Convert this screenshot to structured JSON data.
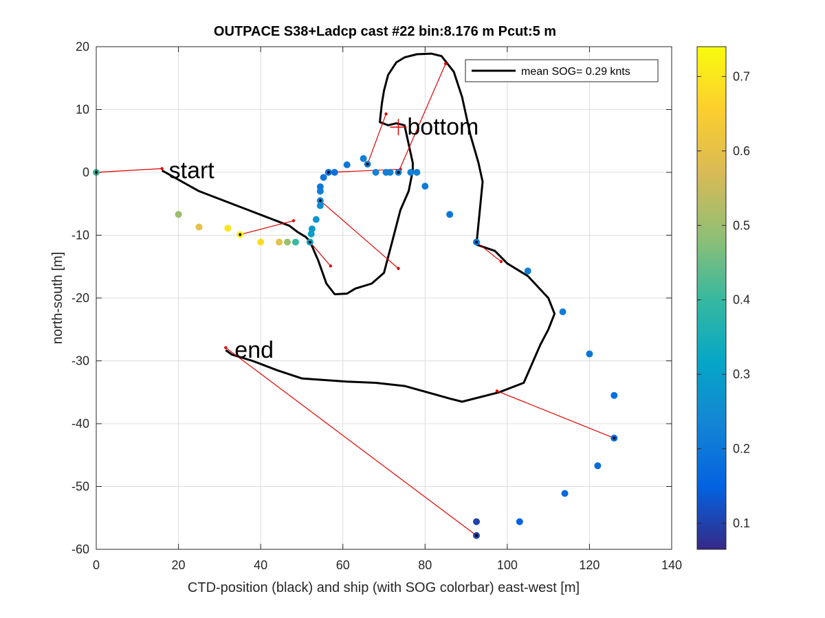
{
  "chart_data": {
    "type": "scatter",
    "title": "OUTPACE S38+Ladcp cast #22 bin:8.176 m  Pcut:5 m",
    "xlabel": "CTD-position (black) and ship (with SOG colorbar) east-west [m]",
    "ylabel": "north-south [m]",
    "xlim": [
      0,
      140
    ],
    "ylim": [
      -60,
      20
    ],
    "xticks": [
      0,
      20,
      40,
      60,
      80,
      100,
      120,
      140
    ],
    "yticks": [
      -60,
      -50,
      -40,
      -30,
      -20,
      -10,
      0,
      10,
      20
    ],
    "grid": true,
    "legend": {
      "location": "top-right",
      "entries": [
        "mean SOG=  0.29 knts"
      ]
    },
    "colorbar": {
      "label": "",
      "range": [
        0.065,
        0.74
      ],
      "ticks": [
        0.1,
        0.2,
        0.3,
        0.4,
        0.5,
        0.6,
        0.7
      ],
      "colormap": "parula",
      "colors": [
        "#352a87",
        "#0363e1",
        "#1485d4",
        "#06a7c6",
        "#38b99e",
        "#92bf73",
        "#d9ba56",
        "#fcce2e",
        "#f9fb0e"
      ]
    },
    "annotations": [
      {
        "text": "start",
        "x": 17,
        "y": 0.3
      },
      {
        "text": "bottom",
        "x": 75,
        "y": 7.2
      },
      {
        "text": "end",
        "x": 33,
        "y": -28.3
      }
    ],
    "ctd_track": {
      "name": "CTD position",
      "color": "#000000",
      "x": [
        16,
        25,
        37,
        47,
        49,
        51,
        52,
        54,
        56,
        58,
        61,
        63,
        67,
        70,
        72,
        74,
        76,
        77,
        77,
        76,
        75,
        73,
        71,
        69,
        69.5,
        70,
        71,
        73,
        75,
        78,
        81.5,
        84,
        87,
        89,
        91,
        93,
        94,
        92.5,
        97,
        100,
        105,
        110,
        111.5,
        110,
        108,
        104,
        98,
        89,
        86,
        75,
        68,
        61,
        50,
        44,
        38,
        33,
        31.5
      ],
      "y": [
        0.3,
        -3,
        -6,
        -8.5,
        -9.5,
        -10.3,
        -11,
        -14,
        -17.7,
        -19.4,
        -19.3,
        -18.5,
        -17.7,
        -16,
        -11,
        -6,
        -3,
        0.3,
        1.5,
        4.5,
        7.5,
        7.8,
        7.5,
        8,
        11,
        13,
        15.5,
        17.5,
        18.3,
        18.8,
        18.9,
        18.5,
        16,
        12,
        6,
        1.5,
        -1.5,
        -11.5,
        -12.5,
        -14.5,
        -16.5,
        -20,
        -22.5,
        -25,
        -27.5,
        -33.5,
        -35,
        -36.5,
        -36,
        -34,
        -33.5,
        -33.3,
        -32.8,
        -31.5,
        -30,
        -29,
        -28.3
      ]
    },
    "ship_sog": {
      "name": "ship position (SOG)",
      "points": [
        {
          "x": 0,
          "y": 0,
          "sog": 0.4
        },
        {
          "x": 20,
          "y": -6.7,
          "sog": 0.5
        },
        {
          "x": 25,
          "y": -8.7,
          "sog": 0.6
        },
        {
          "x": 32,
          "y": -8.9,
          "sog": 0.7
        },
        {
          "x": 35,
          "y": -9.9,
          "sog": 0.72
        },
        {
          "x": 40,
          "y": -11.1,
          "sog": 0.68
        },
        {
          "x": 44.5,
          "y": -11.1,
          "sog": 0.6
        },
        {
          "x": 46.5,
          "y": -11.1,
          "sog": 0.5
        },
        {
          "x": 48.5,
          "y": -11.1,
          "sog": 0.4
        },
        {
          "x": 52,
          "y": -11.1,
          "sog": 0.3
        },
        {
          "x": 52.3,
          "y": -9.8,
          "sog": 0.3
        },
        {
          "x": 52.5,
          "y": -9.0,
          "sog": 0.28
        },
        {
          "x": 53.5,
          "y": -7.5,
          "sog": 0.27
        },
        {
          "x": 54.5,
          "y": -5.3,
          "sog": 0.25
        },
        {
          "x": 54.5,
          "y": -4.5,
          "sog": 0.24
        },
        {
          "x": 54.5,
          "y": -3.0,
          "sog": 0.22
        },
        {
          "x": 54.5,
          "y": -2.3,
          "sog": 0.2
        },
        {
          "x": 55.3,
          "y": -0.8,
          "sog": 0.2
        },
        {
          "x": 56.5,
          "y": 0.0,
          "sog": 0.18
        },
        {
          "x": 58,
          "y": 0.0,
          "sog": 0.18
        },
        {
          "x": 61,
          "y": 1.2,
          "sog": 0.2
        },
        {
          "x": 65,
          "y": 2.2,
          "sog": 0.22
        },
        {
          "x": 66,
          "y": 1.3,
          "sog": 0.22
        },
        {
          "x": 68,
          "y": 0.0,
          "sog": 0.23
        },
        {
          "x": 70.5,
          "y": 0.0,
          "sog": 0.22
        },
        {
          "x": 71.5,
          "y": 0.0,
          "sog": 0.22
        },
        {
          "x": 73.5,
          "y": 0.0,
          "sog": 0.22
        },
        {
          "x": 76.5,
          "y": 0.0,
          "sog": 0.22
        },
        {
          "x": 78,
          "y": 0.0,
          "sog": 0.22
        },
        {
          "x": 80,
          "y": -2.2,
          "sog": 0.21
        },
        {
          "x": 86,
          "y": -6.7,
          "sog": 0.2
        },
        {
          "x": 92.5,
          "y": -11.1,
          "sog": 0.2
        },
        {
          "x": 105,
          "y": -15.7,
          "sog": 0.22
        },
        {
          "x": 113.5,
          "y": -22.2,
          "sog": 0.21
        },
        {
          "x": 120,
          "y": -28.9,
          "sog": 0.2
        },
        {
          "x": 126,
          "y": -35.5,
          "sog": 0.18
        },
        {
          "x": 126,
          "y": -42.3,
          "sog": 0.17
        },
        {
          "x": 122,
          "y": -46.7,
          "sog": 0.17
        },
        {
          "x": 114,
          "y": -51.1,
          "sog": 0.17
        },
        {
          "x": 103,
          "y": -55.6,
          "sog": 0.15
        },
        {
          "x": 92.5,
          "y": -55.6,
          "sog": 0.1
        },
        {
          "x": 92.5,
          "y": -57.8,
          "sog": 0.1
        }
      ]
    },
    "connections": {
      "color": "#e00000",
      "segments": [
        {
          "ship": [
            0,
            0
          ],
          "ctd": [
            16,
            0.6
          ]
        },
        {
          "ship": [
            35,
            -9.9
          ],
          "ctd": [
            48,
            -7.7
          ]
        },
        {
          "ship": [
            52,
            -11.1
          ],
          "ctd": [
            57,
            -14.9
          ]
        },
        {
          "ship": [
            54.5,
            -4.5
          ],
          "ctd": [
            73.5,
            -15.3
          ]
        },
        {
          "ship": [
            56.5,
            0.0
          ],
          "ctd": [
            74,
            0.5
          ]
        },
        {
          "ship": [
            66,
            1.3
          ],
          "ctd": [
            70.5,
            9.3
          ]
        },
        {
          "ship": [
            73.5,
            0.0
          ],
          "ctd": [
            85,
            17.3
          ]
        },
        {
          "ship": [
            92.5,
            -11.1
          ],
          "ctd": [
            98.5,
            -14.2
          ]
        },
        {
          "ship": [
            126,
            -42.3
          ],
          "ctd": [
            97.5,
            -34.8
          ]
        },
        {
          "ship": [
            92.5,
            -57.8
          ],
          "ctd": [
            31.5,
            -27.9
          ]
        }
      ]
    },
    "bottom_marker": {
      "x": 73.5,
      "y": 7.2
    }
  }
}
